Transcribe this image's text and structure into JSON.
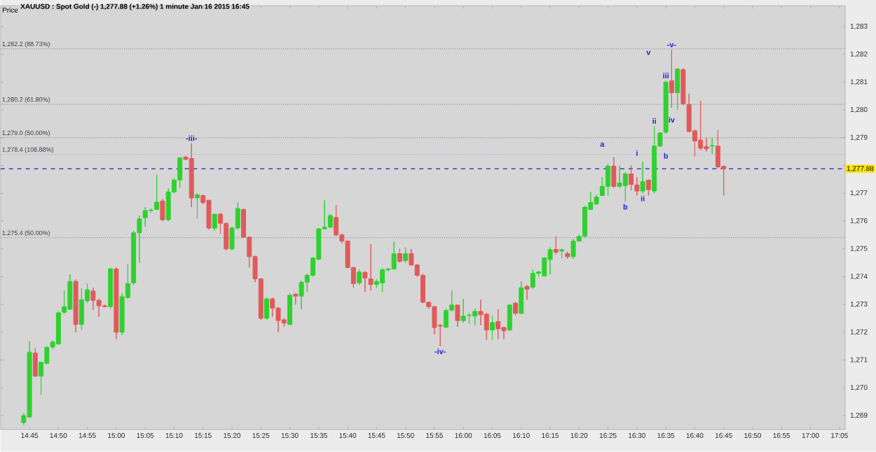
{
  "chart_data": {
    "type": "candlestick",
    "title": "XAUUSD : Spot Gold (-)   1,277.88 (+1.26%)   1 minute  Jan 16 2015 16:45",
    "x": [
      "2015-01-16T14:44",
      "2015-01-16T14:45",
      "2015-01-16T14:46",
      "2015-01-16T14:47",
      "2015-01-16T14:48",
      "2015-01-16T14:49",
      "2015-01-16T14:50",
      "2015-01-16T14:51",
      "2015-01-16T14:52",
      "2015-01-16T14:53",
      "2015-01-16T14:54",
      "2015-01-16T14:55",
      "2015-01-16T14:56",
      "2015-01-16T14:57",
      "2015-01-16T14:58",
      "2015-01-16T14:59",
      "2015-01-16T15:00",
      "2015-01-16T15:01",
      "2015-01-16T15:02",
      "2015-01-16T15:03",
      "2015-01-16T15:04",
      "2015-01-16T15:05",
      "2015-01-16T15:06",
      "2015-01-16T15:07",
      "2015-01-16T15:08",
      "2015-01-16T15:09",
      "2015-01-16T15:10",
      "2015-01-16T15:11",
      "2015-01-16T15:12",
      "2015-01-16T15:13",
      "2015-01-16T15:14",
      "2015-01-16T15:15",
      "2015-01-16T15:16",
      "2015-01-16T15:17",
      "2015-01-16T15:18",
      "2015-01-16T15:19",
      "2015-01-16T15:20",
      "2015-01-16T15:21",
      "2015-01-16T15:22",
      "2015-01-16T15:23",
      "2015-01-16T15:24",
      "2015-01-16T15:25",
      "2015-01-16T15:26",
      "2015-01-16T15:27",
      "2015-01-16T15:28",
      "2015-01-16T15:29",
      "2015-01-16T15:30",
      "2015-01-16T15:31",
      "2015-01-16T15:32",
      "2015-01-16T15:33",
      "2015-01-16T15:34",
      "2015-01-16T15:35",
      "2015-01-16T15:36",
      "2015-01-16T15:37",
      "2015-01-16T15:38",
      "2015-01-16T15:39",
      "2015-01-16T15:40",
      "2015-01-16T15:41",
      "2015-01-16T15:42",
      "2015-01-16T15:43",
      "2015-01-16T15:44",
      "2015-01-16T15:45",
      "2015-01-16T15:46",
      "2015-01-16T15:47",
      "2015-01-16T15:48",
      "2015-01-16T15:49",
      "2015-01-16T15:50",
      "2015-01-16T15:51",
      "2015-01-16T15:52",
      "2015-01-16T15:53",
      "2015-01-16T15:54",
      "2015-01-16T15:55",
      "2015-01-16T15:56",
      "2015-01-16T15:57",
      "2015-01-16T15:58",
      "2015-01-16T15:59",
      "2015-01-16T16:00",
      "2015-01-16T16:01",
      "2015-01-16T16:02",
      "2015-01-16T16:03",
      "2015-01-16T16:04",
      "2015-01-16T16:05",
      "2015-01-16T16:06",
      "2015-01-16T16:07",
      "2015-01-16T16:08",
      "2015-01-16T16:09",
      "2015-01-16T16:10",
      "2015-01-16T16:11",
      "2015-01-16T16:12",
      "2015-01-16T16:13",
      "2015-01-16T16:14",
      "2015-01-16T16:15",
      "2015-01-16T16:16",
      "2015-01-16T16:17",
      "2015-01-16T16:18",
      "2015-01-16T16:19",
      "2015-01-16T16:20",
      "2015-01-16T16:21",
      "2015-01-16T16:22",
      "2015-01-16T16:23",
      "2015-01-16T16:24",
      "2015-01-16T16:25",
      "2015-01-16T16:26",
      "2015-01-16T16:27",
      "2015-01-16T16:28",
      "2015-01-16T16:29",
      "2015-01-16T16:30",
      "2015-01-16T16:31",
      "2015-01-16T16:32",
      "2015-01-16T16:33",
      "2015-01-16T16:34",
      "2015-01-16T16:35",
      "2015-01-16T16:36",
      "2015-01-16T16:37",
      "2015-01-16T16:38",
      "2015-01-16T16:39",
      "2015-01-16T16:40",
      "2015-01-16T16:41",
      "2015-01-16T16:42",
      "2015-01-16T16:43",
      "2015-01-16T16:44",
      "2015-01-16T16:45"
    ],
    "ohlc": [
      [
        1268.75,
        1269.08,
        1268.67,
        1269.0
      ],
      [
        1268.95,
        1271.67,
        1268.92,
        1271.28
      ],
      [
        1271.25,
        1271.42,
        1270.4,
        1270.42
      ],
      [
        1270.42,
        1270.92,
        1269.75,
        1270.92
      ],
      [
        1270.88,
        1271.5,
        1270.85,
        1271.45
      ],
      [
        1271.47,
        1271.7,
        1271.4,
        1271.65
      ],
      [
        1271.58,
        1272.75,
        1271.55,
        1272.7
      ],
      [
        1272.72,
        1273.5,
        1272.67,
        1272.92
      ],
      [
        1272.83,
        1274.08,
        1272.8,
        1273.83
      ],
      [
        1273.83,
        1273.9,
        1272.0,
        1272.28
      ],
      [
        1272.28,
        1273.58,
        1272.08,
        1273.17
      ],
      [
        1273.13,
        1273.75,
        1273.05,
        1273.53
      ],
      [
        1273.48,
        1273.6,
        1272.8,
        1273.15
      ],
      [
        1273.15,
        1273.2,
        1272.55,
        1272.95
      ],
      [
        1272.95,
        1273.0,
        1272.9,
        1272.92
      ],
      [
        1272.92,
        1274.33,
        1272.85,
        1274.28
      ],
      [
        1274.28,
        1274.33,
        1271.75,
        1272.0
      ],
      [
        1272.0,
        1273.4,
        1271.9,
        1273.28
      ],
      [
        1273.25,
        1274.45,
        1273.2,
        1273.75
      ],
      [
        1273.78,
        1275.65,
        1273.7,
        1275.58
      ],
      [
        1275.58,
        1276.2,
        1274.5,
        1276.08
      ],
      [
        1276.12,
        1276.5,
        1275.8,
        1276.38
      ],
      [
        1276.38,
        1276.45,
        1276.3,
        1276.4
      ],
      [
        1276.42,
        1277.67,
        1276.4,
        1276.68
      ],
      [
        1276.72,
        1276.8,
        1276.0,
        1276.05
      ],
      [
        1276.05,
        1277.17,
        1276.0,
        1277.05
      ],
      [
        1277.05,
        1277.55,
        1277.0,
        1277.48
      ],
      [
        1277.48,
        1278.3,
        1277.2,
        1278.28
      ],
      [
        1278.3,
        1278.35,
        1278.2,
        1278.22
      ],
      [
        1278.25,
        1278.8,
        1276.5,
        1276.83
      ],
      [
        1276.83,
        1277.0,
        1276.08,
        1276.95
      ],
      [
        1276.92,
        1276.95,
        1276.6,
        1276.67
      ],
      [
        1276.75,
        1276.75,
        1275.7,
        1275.75
      ],
      [
        1275.75,
        1276.25,
        1275.65,
        1276.25
      ],
      [
        1276.25,
        1276.3,
        1275.55,
        1275.92
      ],
      [
        1275.92,
        1275.95,
        1274.95,
        1275.0
      ],
      [
        1275.0,
        1275.8,
        1274.95,
        1275.75
      ],
      [
        1275.75,
        1276.67,
        1275.7,
        1276.45
      ],
      [
        1276.42,
        1276.45,
        1275.4,
        1275.42
      ],
      [
        1275.42,
        1275.45,
        1274.33,
        1274.72
      ],
      [
        1274.72,
        1274.75,
        1273.8,
        1273.92
      ],
      [
        1273.92,
        1273.95,
        1272.45,
        1272.5
      ],
      [
        1272.5,
        1273.25,
        1272.45,
        1273.2
      ],
      [
        1273.2,
        1273.25,
        1272.55,
        1272.87
      ],
      [
        1272.87,
        1272.9,
        1272.0,
        1272.42
      ],
      [
        1272.45,
        1272.5,
        1272.2,
        1272.33
      ],
      [
        1272.28,
        1273.4,
        1272.25,
        1273.33
      ],
      [
        1273.37,
        1273.4,
        1273.0,
        1273.3
      ],
      [
        1273.3,
        1273.85,
        1272.83,
        1273.8
      ],
      [
        1273.8,
        1274.1,
        1273.45,
        1274.05
      ],
      [
        1274.05,
        1274.7,
        1274.0,
        1274.67
      ],
      [
        1274.63,
        1275.75,
        1274.6,
        1275.72
      ],
      [
        1275.72,
        1276.75,
        1275.7,
        1275.78
      ],
      [
        1275.78,
        1276.25,
        1275.75,
        1276.2
      ],
      [
        1276.13,
        1276.58,
        1275.45,
        1275.5
      ],
      [
        1275.5,
        1275.55,
        1275.2,
        1275.28
      ],
      [
        1275.28,
        1275.3,
        1274.3,
        1274.33
      ],
      [
        1274.33,
        1274.35,
        1273.6,
        1273.75
      ],
      [
        1273.78,
        1274.25,
        1273.7,
        1274.17
      ],
      [
        1274.15,
        1274.2,
        1273.45,
        1273.95
      ],
      [
        1273.92,
        1275.17,
        1273.5,
        1273.72
      ],
      [
        1273.72,
        1273.9,
        1273.6,
        1273.83
      ],
      [
        1273.78,
        1274.3,
        1273.45,
        1274.25
      ],
      [
        1274.25,
        1274.3,
        1274.2,
        1274.28
      ],
      [
        1274.28,
        1275.25,
        1274.25,
        1274.83
      ],
      [
        1274.83,
        1275.0,
        1274.5,
        1274.55
      ],
      [
        1274.58,
        1275.05,
        1274.5,
        1274.83
      ],
      [
        1274.83,
        1275.0,
        1274.4,
        1274.42
      ],
      [
        1274.42,
        1274.45,
        1274.0,
        1274.05
      ],
      [
        1274.05,
        1274.1,
        1273.05,
        1273.08
      ],
      [
        1273.08,
        1273.1,
        1272.85,
        1272.92
      ],
      [
        1272.92,
        1272.95,
        1271.92,
        1272.17
      ],
      [
        1272.25,
        1272.3,
        1271.5,
        1272.22
      ],
      [
        1272.18,
        1272.85,
        1272.15,
        1272.78
      ],
      [
        1272.8,
        1273.5,
        1272.75,
        1272.98
      ],
      [
        1272.98,
        1273.0,
        1272.2,
        1272.42
      ],
      [
        1272.42,
        1273.2,
        1272.35,
        1272.58
      ],
      [
        1272.6,
        1272.7,
        1272.3,
        1272.62
      ],
      [
        1272.58,
        1272.85,
        1272.25,
        1272.75
      ],
      [
        1272.75,
        1273.17,
        1272.25,
        1272.63
      ],
      [
        1272.65,
        1272.7,
        1271.72,
        1272.08
      ],
      [
        1272.08,
        1272.6,
        1271.72,
        1272.35
      ],
      [
        1272.38,
        1272.83,
        1271.75,
        1272.12
      ],
      [
        1272.17,
        1272.2,
        1271.75,
        1272.05
      ],
      [
        1272.08,
        1273.0,
        1272.05,
        1272.98
      ],
      [
        1273.05,
        1273.1,
        1272.6,
        1272.68
      ],
      [
        1272.68,
        1273.83,
        1272.65,
        1273.6
      ],
      [
        1273.65,
        1273.7,
        1273.17,
        1273.55
      ],
      [
        1273.62,
        1274.25,
        1273.55,
        1274.12
      ],
      [
        1274.12,
        1274.2,
        1274.0,
        1274.17
      ],
      [
        1274.03,
        1274.7,
        1274.0,
        1274.67
      ],
      [
        1274.62,
        1275.05,
        1274.08,
        1274.97
      ],
      [
        1274.98,
        1275.45,
        1274.8,
        1274.88
      ],
      [
        1274.92,
        1275.0,
        1274.67,
        1274.97
      ],
      [
        1274.83,
        1274.9,
        1274.65,
        1274.72
      ],
      [
        1274.72,
        1275.35,
        1274.65,
        1275.28
      ],
      [
        1275.28,
        1275.5,
        1275.25,
        1275.45
      ],
      [
        1275.45,
        1276.55,
        1275.4,
        1276.5
      ],
      [
        1276.42,
        1277.05,
        1276.4,
        1276.67
      ],
      [
        1276.62,
        1276.95,
        1276.58,
        1276.87
      ],
      [
        1276.92,
        1277.58,
        1276.9,
        1277.25
      ],
      [
        1277.25,
        1278.05,
        1276.92,
        1277.98
      ],
      [
        1277.98,
        1278.3,
        1277.2,
        1277.25
      ],
      [
        1277.25,
        1278.0,
        1277.2,
        1277.37
      ],
      [
        1277.28,
        1277.75,
        1276.7,
        1277.7
      ],
      [
        1277.7,
        1278.0,
        1277.1,
        1277.32
      ],
      [
        1277.3,
        1277.58,
        1276.92,
        1277.08
      ],
      [
        1277.08,
        1278.13,
        1277.0,
        1277.42
      ],
      [
        1277.47,
        1277.5,
        1276.92,
        1277.13
      ],
      [
        1277.08,
        1279.42,
        1277.0,
        1278.7
      ],
      [
        1278.7,
        1279.2,
        1278.67,
        1279.17
      ],
      [
        1279.2,
        1281.05,
        1279.15,
        1281.0
      ],
      [
        1281.05,
        1282.17,
        1280.08,
        1280.62
      ],
      [
        1280.62,
        1281.5,
        1280.0,
        1281.47
      ],
      [
        1281.45,
        1281.5,
        1280.17,
        1280.22
      ],
      [
        1280.2,
        1280.58,
        1279.2,
        1279.22
      ],
      [
        1279.25,
        1279.3,
        1278.33,
        1278.88
      ],
      [
        1278.92,
        1280.33,
        1278.55,
        1278.62
      ],
      [
        1278.68,
        1279.0,
        1278.5,
        1278.6
      ],
      [
        1278.7,
        1279.0,
        1278.42,
        1278.72
      ],
      [
        1278.7,
        1279.28,
        1277.9,
        1277.95
      ],
      [
        1277.97,
        1278.0,
        1276.92,
        1277.88
      ]
    ],
    "colors": [
      "#2fd12f",
      "#2fd12f",
      "#e05a5a",
      "#2fd12f",
      "#2fd12f",
      "#2fd12f",
      "#2fd12f",
      "#2fd12f",
      "#2fd12f",
      "#e05a5a",
      "#2fd12f",
      "#2fd12f",
      "#e05a5a",
      "#e05a5a",
      "#e05a5a",
      "#2fd12f",
      "#e05a5a",
      "#2fd12f",
      "#2fd12f",
      "#2fd12f",
      "#2fd12f",
      "#2fd12f",
      "#2fd12f",
      "#2fd12f",
      "#e05a5a",
      "#2fd12f",
      "#2fd12f",
      "#2fd12f",
      "#e05a5a",
      "#e05a5a",
      "#2fd12f",
      "#e05a5a",
      "#e05a5a",
      "#2fd12f",
      "#e05a5a",
      "#e05a5a",
      "#2fd12f",
      "#2fd12f",
      "#e05a5a",
      "#e05a5a",
      "#e05a5a",
      "#e05a5a",
      "#2fd12f",
      "#e05a5a",
      "#e05a5a",
      "#e05a5a",
      "#2fd12f",
      "#e05a5a",
      "#2fd12f",
      "#2fd12f",
      "#2fd12f",
      "#2fd12f",
      "#2fd12f",
      "#2fd12f",
      "#e05a5a",
      "#e05a5a",
      "#e05a5a",
      "#e05a5a",
      "#2fd12f",
      "#e05a5a",
      "#e05a5a",
      "#2fd12f",
      "#2fd12f",
      "#2fd12f",
      "#2fd12f",
      "#e05a5a",
      "#2fd12f",
      "#e05a5a",
      "#e05a5a",
      "#e05a5a",
      "#e05a5a",
      "#e05a5a",
      "#e05a5a",
      "#2fd12f",
      "#2fd12f",
      "#e05a5a",
      "#2fd12f",
      "#2fd12f",
      "#2fd12f",
      "#e05a5a",
      "#e05a5a",
      "#2fd12f",
      "#e05a5a",
      "#e05a5a",
      "#2fd12f",
      "#e05a5a",
      "#2fd12f",
      "#e05a5a",
      "#2fd12f",
      "#2fd12f",
      "#2fd12f",
      "#2fd12f",
      "#e05a5a",
      "#2fd12f",
      "#e05a5a",
      "#2fd12f",
      "#2fd12f",
      "#2fd12f",
      "#2fd12f",
      "#2fd12f",
      "#2fd12f",
      "#2fd12f",
      "#e05a5a",
      "#2fd12f",
      "#2fd12f",
      "#e05a5a",
      "#e05a5a",
      "#2fd12f",
      "#e05a5a",
      "#2fd12f",
      "#2fd12f",
      "#2fd12f",
      "#e05a5a",
      "#2fd12f",
      "#e05a5a",
      "#e05a5a",
      "#e05a5a",
      "#e05a5a",
      "#e05a5a",
      "#2fd12f",
      "#e05a5a",
      "#e05a5a"
    ],
    "xlim": [
      "2015-01-16T14:40",
      "2015-01-16T17:06"
    ],
    "xticks": [
      {
        "value": "2015-01-16T14:45",
        "label": "14:45"
      },
      {
        "value": "2015-01-16T14:50",
        "label": "14:50"
      },
      {
        "value": "2015-01-16T14:55",
        "label": "14:55"
      },
      {
        "value": "2015-01-16T15:00",
        "label": "15:00"
      },
      {
        "value": "2015-01-16T15:05",
        "label": "15:05"
      },
      {
        "value": "2015-01-16T15:10",
        "label": "15:10"
      },
      {
        "value": "2015-01-16T15:15",
        "label": "15:15"
      },
      {
        "value": "2015-01-16T15:20",
        "label": "15:20"
      },
      {
        "value": "2015-01-16T15:25",
        "label": "15:25"
      },
      {
        "value": "2015-01-16T15:30",
        "label": "15:30"
      },
      {
        "value": "2015-01-16T15:35",
        "label": "15:35"
      },
      {
        "value": "2015-01-16T15:40",
        "label": "15:40"
      },
      {
        "value": "2015-01-16T15:45",
        "label": "15:45"
      },
      {
        "value": "2015-01-16T15:50",
        "label": "15:50"
      },
      {
        "value": "2015-01-16T15:55",
        "label": "15:55"
      },
      {
        "value": "2015-01-16T16:00",
        "label": "16:00"
      },
      {
        "value": "2015-01-16T16:05",
        "label": "16:05"
      },
      {
        "value": "2015-01-16T16:10",
        "label": "16:10"
      },
      {
        "value": "2015-01-16T16:15",
        "label": "16:15"
      },
      {
        "value": "2015-01-16T16:20",
        "label": "16:20"
      },
      {
        "value": "2015-01-16T16:25",
        "label": "16:25"
      },
      {
        "value": "2015-01-16T16:30",
        "label": "16:30"
      },
      {
        "value": "2015-01-16T16:35",
        "label": "16:35"
      },
      {
        "value": "2015-01-16T16:40",
        "label": "16:40"
      },
      {
        "value": "2015-01-16T16:45",
        "label": "16:45"
      },
      {
        "value": "2015-01-16T16:50",
        "label": "16:50"
      },
      {
        "value": "2015-01-16T16:55",
        "label": "16:55"
      },
      {
        "value": "2015-01-16T17:00",
        "label": "17:00"
      },
      {
        "value": "2015-01-16T17:05",
        "label": "17:05"
      }
    ],
    "ylim": [
      1268.5,
      1283.75
    ],
    "yticks": [
      {
        "value": 1269,
        "label": "1,269"
      },
      {
        "value": 1270,
        "label": "1,270"
      },
      {
        "value": 1271,
        "label": "1,271"
      },
      {
        "value": 1272,
        "label": "1,272"
      },
      {
        "value": 1273,
        "label": "1,273"
      },
      {
        "value": 1274,
        "label": "1,274"
      },
      {
        "value": 1275,
        "label": "1,275"
      },
      {
        "value": 1276,
        "label": "1,276"
      },
      {
        "value": 1277,
        "label": "1,277"
      },
      {
        "value": 1278,
        "label": null
      },
      {
        "value": 1279,
        "label": "1,279"
      },
      {
        "value": 1280,
        "label": "1,280"
      },
      {
        "value": 1281,
        "label": "1,281"
      },
      {
        "value": 1282,
        "label": "1,282"
      },
      {
        "value": 1283,
        "label": "1,283"
      }
    ],
    "ref_lines": [
      {
        "axis": "y",
        "value": 1282.2,
        "label": "1,282.2 (88.73%)",
        "color": "#808080",
        "line_style": "dotted"
      },
      {
        "axis": "y",
        "value": 1280.2,
        "label": "1,280.2 (61.80%)",
        "color": "#808080",
        "line_style": "dotted"
      },
      {
        "axis": "y",
        "value": 1279.0,
        "label": "1,279.0 (50.00%)",
        "color": "#808080",
        "line_style": "dotted"
      },
      {
        "axis": "y",
        "value": 1278.4,
        "label": "1,278.4 (108.88%)",
        "color": "#9aa6e0",
        "line_style": "dotted"
      },
      {
        "axis": "y",
        "value": 1275.4,
        "label": "1,275.4 (50.00%)",
        "color": "#808080",
        "line_style": "dotted"
      },
      {
        "axis": "y",
        "value": 1277.88,
        "label": "1,277.88",
        "color": "#3a3acc",
        "line_style": "dashed"
      }
    ],
    "annotations": [
      "Price",
      {
        "text": "-iii-",
        "x": "2015-01-16T15:13",
        "y": 1278.8
      },
      {
        "text": "-iv-",
        "x": "2015-01-16T15:56",
        "y": 1271.5
      },
      {
        "text": "-v-",
        "x": "2015-01-16T16:36",
        "y": 1282.17
      },
      {
        "text": "a",
        "x": "2015-01-16T16:24",
        "y": 1278.75
      },
      {
        "text": "ii",
        "x": "2015-01-16T16:33",
        "y": 1279.42
      },
      {
        "text": "i",
        "x": "2015-01-16T16:30",
        "y": 1278.45
      },
      {
        "text": "iii",
        "x": "2015-01-16T16:35",
        "y": 1281.05
      },
      {
        "text": "v",
        "x": "2015-01-16T16:32",
        "y": 1282.05
      },
      {
        "text": "iv",
        "x": "2015-01-16T16:36",
        "y": 1279.65
      },
      {
        "text": "b",
        "x": "2015-01-16T16:35",
        "y": 1278.35
      },
      {
        "text": "ii",
        "x": "2015-01-16T16:31",
        "y": 1277.0
      },
      {
        "text": "b",
        "x": "2015-01-16T16:28",
        "y": 1276.7
      }
    ]
  }
}
